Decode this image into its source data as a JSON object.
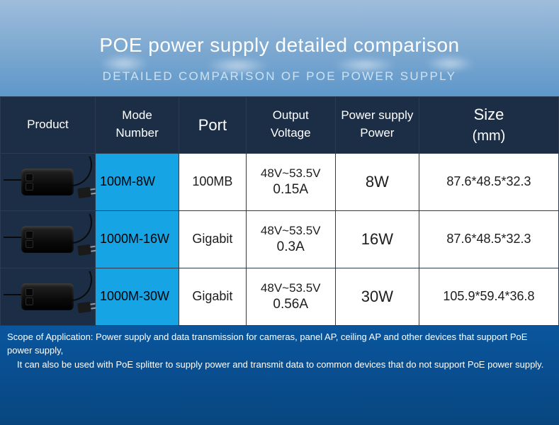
{
  "header": {
    "title": "POE power supply detailed comparison",
    "subtitle": "DETAILED COMPARISON OF POE POWER SUPPLY"
  },
  "columns": {
    "product": "Product",
    "model_l1": "Mode",
    "model_l2": "Number",
    "port": "Port",
    "voltage_l1": "Output",
    "voltage_l2": "Voltage",
    "power_l1": "Power supply",
    "power_l2": "Power",
    "size_l1": "Size",
    "size_l2": "(mm)"
  },
  "col_widths": [
    "17%",
    "15%",
    "12%",
    "16%",
    "15%",
    "25%"
  ],
  "rows": [
    {
      "model": "100M-8W",
      "port": "100MB",
      "voltage_l1": "48V~53.5V",
      "voltage_l2": "0.15A",
      "power": "8W",
      "size": "87.6*48.5*32.3"
    },
    {
      "model": "1000M-16W",
      "port": "Gigabit",
      "voltage_l1": "48V~53.5V",
      "voltage_l2": "0.3A",
      "power": "16W",
      "size": "87.6*48.5*32.3"
    },
    {
      "model": "1000M-30W",
      "port": "Gigabit",
      "voltage_l1": "48V~53.5V",
      "voltage_l2": "0.56A",
      "power": "30W",
      "size": "105.9*59.4*36.8"
    }
  ],
  "footer": {
    "line1": "Scope of Application: Power supply and data transmission for cameras, panel AP, ceiling AP and other devices that support PoE power supply,",
    "line2": "It can also be used with PoE splitter to supply power and transmit data to common devices that do not support PoE power supply."
  },
  "colors": {
    "header_cell_bg": "#1b2e46",
    "model_cell_bg": "#16a4e4",
    "data_cell_bg": "#ffffff",
    "border": "#2b3b50",
    "title_text": "#ffffff",
    "subtitle_text": "#cde2f2"
  }
}
